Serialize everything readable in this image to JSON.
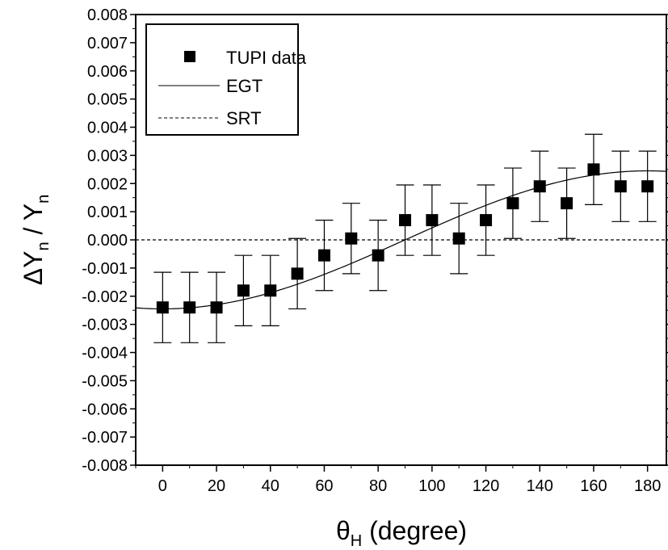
{
  "chart_data": {
    "type": "scatter",
    "xlabel": {
      "main": "θ",
      "sub": "H",
      "rest": " (degree)"
    },
    "ylabel": {
      "parts": [
        {
          "text": "ΔY",
          "sub": "n"
        },
        {
          "text": " / Y",
          "sub": "n"
        }
      ]
    },
    "xlim": [
      -10,
      187
    ],
    "ylim": [
      -0.008,
      0.008
    ],
    "xticks": [
      0,
      20,
      40,
      60,
      80,
      100,
      120,
      140,
      160,
      180
    ],
    "xtick_labels": [
      "0",
      "20",
      "40",
      "60",
      "80",
      "100",
      "120",
      "140",
      "160",
      "180"
    ],
    "yticks": [
      -0.008,
      -0.007,
      -0.006,
      -0.005,
      -0.004,
      -0.003,
      -0.002,
      -0.001,
      0.0,
      0.001,
      0.002,
      0.003,
      0.004,
      0.005,
      0.006,
      0.007,
      0.008
    ],
    "ytick_labels": [
      "-0.008",
      "-0.007",
      "-0.006",
      "-0.005",
      "-0.004",
      "-0.003",
      "-0.002",
      "-0.001",
      "0.000",
      "0.001",
      "0.002",
      "0.003",
      "0.004",
      "0.005",
      "0.006",
      "0.007",
      "0.008"
    ],
    "grid": false,
    "legend": {
      "position": "top-left",
      "entries": [
        {
          "label": "TUPI data",
          "style": "square-marker"
        },
        {
          "label": "EGT",
          "style": "solid-line"
        },
        {
          "label": "SRT",
          "style": "dashed-line"
        }
      ]
    },
    "series": [
      {
        "name": "TUPI data",
        "type": "scatter-errorbar",
        "color": "#000000",
        "x": [
          0,
          10,
          20,
          30,
          40,
          50,
          60,
          70,
          80,
          90,
          100,
          110,
          120,
          130,
          140,
          150,
          160,
          170,
          180
        ],
        "y": [
          -0.0024,
          -0.0024,
          -0.0024,
          -0.0018,
          -0.0018,
          -0.0012,
          -0.00055,
          5e-05,
          -0.00055,
          0.0007,
          0.0007,
          5e-05,
          0.0007,
          0.0013,
          0.0019,
          0.0013,
          0.0025,
          0.0019,
          0.0019
        ],
        "yerr": [
          0.00125,
          0.00125,
          0.00125,
          0.00125,
          0.00125,
          0.00125,
          0.00125,
          0.00125,
          0.00125,
          0.00125,
          0.00125,
          0.00125,
          0.00125,
          0.00125,
          0.00125,
          0.00125,
          0.00125,
          0.00125,
          0.00125
        ]
      },
      {
        "name": "EGT",
        "type": "line",
        "style": "solid",
        "color": "#000000",
        "amplitude": 0.00245,
        "x": [
          -10,
          0,
          10,
          20,
          30,
          40,
          50,
          60,
          70,
          80,
          90,
          100,
          110,
          120,
          130,
          140,
          150,
          160,
          170,
          180,
          187
        ],
        "y": [
          -0.002413,
          -0.00245,
          -0.002413,
          -0.002302,
          -0.002122,
          -0.001877,
          -0.001575,
          -0.001225,
          -0.000838,
          -0.000425,
          0.0,
          0.000425,
          0.000838,
          0.001225,
          0.001575,
          0.001877,
          0.002122,
          0.002302,
          0.002413,
          0.00245,
          0.002432
        ]
      },
      {
        "name": "SRT",
        "type": "line",
        "style": "dashed",
        "color": "#000000",
        "x": [
          -10,
          187
        ],
        "y": [
          0.0,
          0.0
        ]
      }
    ]
  }
}
